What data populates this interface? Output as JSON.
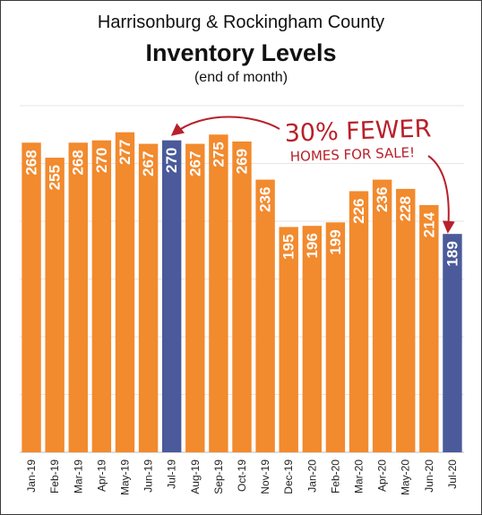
{
  "header": {
    "title": "Harrisonburg & Rockingham County",
    "subtitle": "Inventory Levels",
    "note": "(end of month)"
  },
  "annotation": {
    "line1": "30% FEWER",
    "line2": "HOMES FOR SALE!"
  },
  "colors": {
    "bar": "#f28a2e",
    "highlight": "#4a5a9a",
    "annotation": "#b8202a",
    "value_label": "#ffffff"
  },
  "chart_data": {
    "type": "bar",
    "title": "Inventory Levels",
    "subtitle": "(end of month)",
    "categories": [
      "Jan-19",
      "Feb-19",
      "Mar-19",
      "Apr-19",
      "May-19",
      "Jun-19",
      "Jul-19",
      "Aug-19",
      "Sep-19",
      "Oct-19",
      "Nov-19",
      "Dec-19",
      "Jan-20",
      "Feb-20",
      "Mar-20",
      "Apr-20",
      "May-20",
      "Jun-20",
      "Jul-20"
    ],
    "values": [
      268,
      255,
      268,
      270,
      277,
      267,
      270,
      267,
      275,
      269,
      236,
      195,
      196,
      199,
      226,
      236,
      228,
      214,
      189
    ],
    "highlighted": [
      "Jul-19",
      "Jul-20"
    ],
    "ylim": [
      0,
      300
    ],
    "grid": true,
    "data_labels": true
  }
}
